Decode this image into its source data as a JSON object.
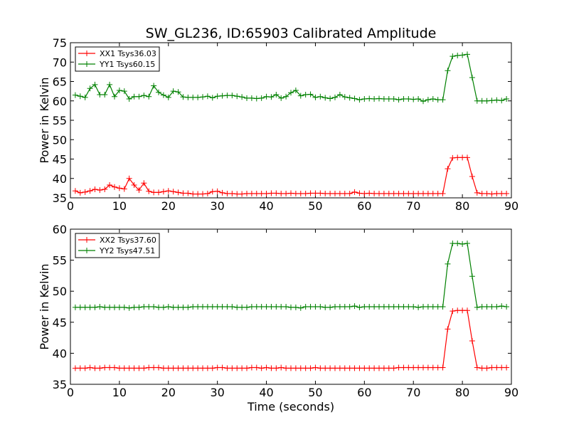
{
  "figure": {
    "title": "SW_GL236, ID:65903 Calibrated Amplitude"
  },
  "chart_data": [
    {
      "type": "line",
      "xlabel": "",
      "ylabel": "Power in Kelvin",
      "xlim": [
        0,
        90
      ],
      "ylim": [
        35,
        75
      ],
      "xticks": [
        "0",
        "10",
        "20",
        "30",
        "40",
        "50",
        "60",
        "70",
        "80",
        "90"
      ],
      "yticks": [
        "35",
        "40",
        "45",
        "50",
        "55",
        "60",
        "65",
        "70",
        "75"
      ],
      "legend_position": "top-left",
      "grid": false,
      "series": [
        {
          "name": "XX1 Tsys36.03",
          "color": "#ff0000",
          "x": [
            1,
            2,
            3,
            4,
            5,
            6,
            7,
            8,
            9,
            10,
            11,
            12,
            13,
            14,
            15,
            16,
            17,
            18,
            19,
            20,
            21,
            22,
            23,
            24,
            25,
            26,
            27,
            28,
            29,
            30,
            31,
            32,
            33,
            34,
            35,
            36,
            37,
            38,
            39,
            40,
            41,
            42,
            43,
            44,
            45,
            46,
            47,
            48,
            49,
            50,
            51,
            52,
            53,
            54,
            55,
            56,
            57,
            58,
            59,
            60,
            61,
            62,
            63,
            64,
            65,
            66,
            67,
            68,
            69,
            70,
            71,
            72,
            73,
            74,
            75,
            76,
            77,
            78,
            79,
            80,
            81,
            82,
            83,
            84,
            85,
            86,
            87,
            88,
            89
          ],
          "y": [
            36.8,
            36.3,
            36.5,
            36.8,
            37.2,
            37.0,
            37.2,
            38.3,
            37.8,
            37.5,
            37.3,
            40.0,
            38.3,
            37.0,
            38.8,
            36.7,
            36.4,
            36.4,
            36.6,
            36.8,
            36.6,
            36.4,
            36.2,
            36.2,
            36.0,
            36.0,
            36.0,
            36.1,
            36.6,
            36.7,
            36.3,
            36.1,
            36.1,
            36.0,
            36.0,
            36.1,
            36.1,
            36.1,
            36.1,
            36.1,
            36.2,
            36.2,
            36.1,
            36.1,
            36.2,
            36.1,
            36.1,
            36.1,
            36.2,
            36.2,
            36.2,
            36.1,
            36.1,
            36.1,
            36.1,
            36.1,
            36.1,
            36.5,
            36.2,
            36.1,
            36.2,
            36.1,
            36.1,
            36.1,
            36.1,
            36.1,
            36.1,
            36.1,
            36.1,
            36.1,
            36.1,
            36.1,
            36.1,
            36.1,
            36.1,
            36.1,
            42.5,
            45.3,
            45.4,
            45.4,
            45.4,
            40.5,
            36.3,
            36.1,
            36.1,
            36.0,
            36.1,
            36.1,
            36.1
          ]
        },
        {
          "name": "YY1 Tsys60.15",
          "color": "#008000",
          "x": [
            1,
            2,
            3,
            4,
            5,
            6,
            7,
            8,
            9,
            10,
            11,
            12,
            13,
            14,
            15,
            16,
            17,
            18,
            19,
            20,
            21,
            22,
            23,
            24,
            25,
            26,
            27,
            28,
            29,
            30,
            31,
            32,
            33,
            34,
            35,
            36,
            37,
            38,
            39,
            40,
            41,
            42,
            43,
            44,
            45,
            46,
            47,
            48,
            49,
            50,
            51,
            52,
            53,
            54,
            55,
            56,
            57,
            58,
            59,
            60,
            61,
            62,
            63,
            64,
            65,
            66,
            67,
            68,
            69,
            70,
            71,
            72,
            73,
            74,
            75,
            76,
            77,
            78,
            79,
            80,
            81,
            82,
            83,
            84,
            85,
            86,
            87,
            88,
            89
          ],
          "y": [
            61.5,
            61.2,
            60.9,
            63.2,
            64.2,
            61.6,
            61.6,
            64.2,
            61.1,
            62.7,
            62.5,
            60.5,
            61.1,
            61.1,
            61.4,
            61.1,
            63.9,
            62.2,
            61.5,
            60.9,
            62.5,
            62.3,
            61.0,
            60.9,
            60.9,
            60.9,
            61.0,
            61.2,
            60.8,
            61.2,
            61.3,
            61.4,
            61.4,
            61.2,
            61.0,
            60.7,
            60.7,
            60.6,
            60.7,
            61.1,
            61.0,
            61.6,
            60.7,
            61.1,
            62.1,
            62.7,
            61.3,
            61.6,
            61.7,
            60.9,
            61.1,
            60.8,
            60.6,
            60.9,
            61.6,
            61.0,
            60.8,
            60.6,
            60.3,
            60.5,
            60.6,
            60.5,
            60.6,
            60.5,
            60.5,
            60.5,
            60.3,
            60.5,
            60.5,
            60.4,
            60.5,
            59.9,
            60.3,
            60.5,
            60.3,
            60.3,
            67.8,
            71.5,
            71.7,
            71.8,
            72.0,
            66.0,
            60.0,
            60.0,
            60.0,
            60.1,
            60.2,
            60.1,
            60.5
          ]
        }
      ]
    },
    {
      "type": "line",
      "xlabel": "Time (seconds)",
      "ylabel": "Power in Kelvin",
      "xlim": [
        0,
        90
      ],
      "ylim": [
        35,
        60
      ],
      "xticks": [
        "0",
        "10",
        "20",
        "30",
        "40",
        "50",
        "60",
        "70",
        "80",
        "90"
      ],
      "yticks": [
        "35",
        "40",
        "45",
        "50",
        "55",
        "60"
      ],
      "legend_position": "top-left",
      "grid": false,
      "series": [
        {
          "name": "XX2 Tsys37.60",
          "color": "#ff0000",
          "x": [
            1,
            2,
            3,
            4,
            5,
            6,
            7,
            8,
            9,
            10,
            11,
            12,
            13,
            14,
            15,
            16,
            17,
            18,
            19,
            20,
            21,
            22,
            23,
            24,
            25,
            26,
            27,
            28,
            29,
            30,
            31,
            32,
            33,
            34,
            35,
            36,
            37,
            38,
            39,
            40,
            41,
            42,
            43,
            44,
            45,
            46,
            47,
            48,
            49,
            50,
            51,
            52,
            53,
            54,
            55,
            56,
            57,
            58,
            59,
            60,
            61,
            62,
            63,
            64,
            65,
            66,
            67,
            68,
            69,
            70,
            71,
            72,
            73,
            74,
            75,
            76,
            77,
            78,
            79,
            80,
            81,
            82,
            83,
            84,
            85,
            86,
            87,
            88,
            89
          ],
          "y": [
            37.6,
            37.6,
            37.6,
            37.7,
            37.6,
            37.6,
            37.7,
            37.7,
            37.7,
            37.6,
            37.6,
            37.6,
            37.6,
            37.6,
            37.6,
            37.7,
            37.7,
            37.7,
            37.6,
            37.6,
            37.6,
            37.6,
            37.6,
            37.6,
            37.6,
            37.6,
            37.6,
            37.6,
            37.6,
            37.7,
            37.7,
            37.6,
            37.6,
            37.6,
            37.6,
            37.6,
            37.7,
            37.7,
            37.6,
            37.7,
            37.6,
            37.6,
            37.7,
            37.6,
            37.6,
            37.6,
            37.6,
            37.6,
            37.6,
            37.7,
            37.6,
            37.6,
            37.6,
            37.6,
            37.6,
            37.6,
            37.6,
            37.6,
            37.6,
            37.6,
            37.6,
            37.6,
            37.6,
            37.6,
            37.6,
            37.6,
            37.7,
            37.7,
            37.7,
            37.7,
            37.7,
            37.7,
            37.7,
            37.7,
            37.7,
            37.7,
            43.9,
            46.8,
            46.9,
            46.9,
            46.9,
            42.0,
            37.7,
            37.6,
            37.6,
            37.7,
            37.7,
            37.7,
            37.7
          ]
        },
        {
          "name": "YY2 Tsys47.51",
          "color": "#008000",
          "x": [
            1,
            2,
            3,
            4,
            5,
            6,
            7,
            8,
            9,
            10,
            11,
            12,
            13,
            14,
            15,
            16,
            17,
            18,
            19,
            20,
            21,
            22,
            23,
            24,
            25,
            26,
            27,
            28,
            29,
            30,
            31,
            32,
            33,
            34,
            35,
            36,
            37,
            38,
            39,
            40,
            41,
            42,
            43,
            44,
            45,
            46,
            47,
            48,
            49,
            50,
            51,
            52,
            53,
            54,
            55,
            56,
            57,
            58,
            59,
            60,
            61,
            62,
            63,
            64,
            65,
            66,
            67,
            68,
            69,
            70,
            71,
            72,
            73,
            74,
            75,
            76,
            77,
            78,
            79,
            80,
            81,
            82,
            83,
            84,
            85,
            86,
            87,
            88,
            89
          ],
          "y": [
            47.4,
            47.4,
            47.4,
            47.4,
            47.4,
            47.5,
            47.4,
            47.4,
            47.4,
            47.4,
            47.4,
            47.3,
            47.4,
            47.4,
            47.5,
            47.5,
            47.5,
            47.4,
            47.4,
            47.5,
            47.4,
            47.4,
            47.4,
            47.4,
            47.5,
            47.5,
            47.5,
            47.5,
            47.5,
            47.5,
            47.5,
            47.5,
            47.5,
            47.4,
            47.4,
            47.4,
            47.5,
            47.5,
            47.5,
            47.5,
            47.5,
            47.5,
            47.5,
            47.5,
            47.4,
            47.4,
            47.3,
            47.5,
            47.5,
            47.5,
            47.5,
            47.4,
            47.4,
            47.5,
            47.5,
            47.5,
            47.5,
            47.6,
            47.4,
            47.5,
            47.5,
            47.5,
            47.5,
            47.5,
            47.5,
            47.5,
            47.5,
            47.5,
            47.5,
            47.5,
            47.4,
            47.5,
            47.5,
            47.5,
            47.5,
            47.5,
            54.4,
            57.7,
            57.7,
            57.6,
            57.7,
            52.4,
            47.4,
            47.5,
            47.5,
            47.5,
            47.5,
            47.6,
            47.5
          ]
        }
      ]
    }
  ]
}
